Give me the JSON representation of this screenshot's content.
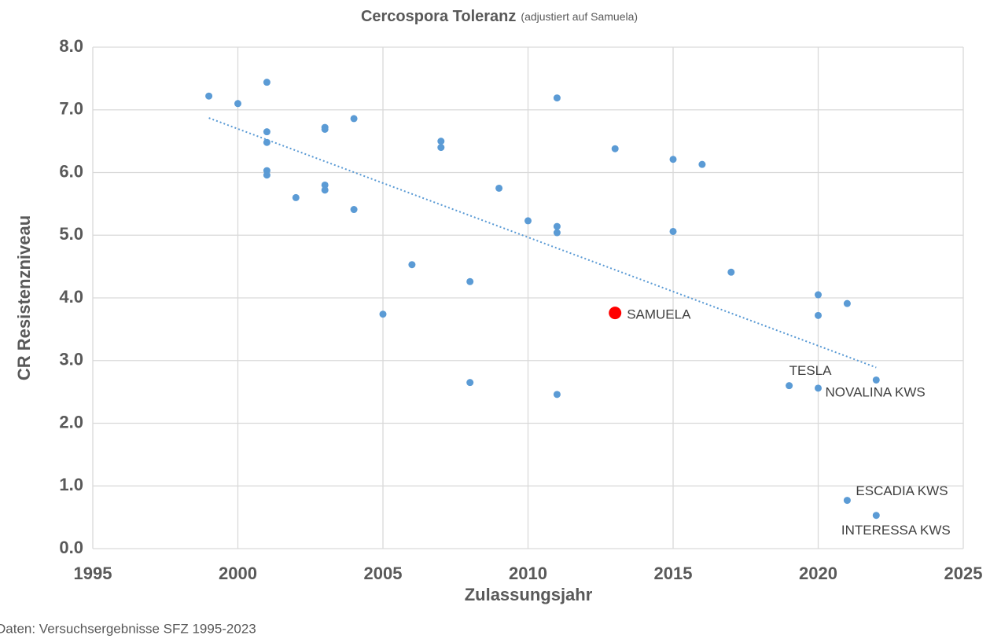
{
  "chart_data": {
    "type": "scatter",
    "title": "Cercospora Toleranz",
    "subtitle": "(adjustiert auf Samuela)",
    "x_label": "Zulassungsjahr",
    "y_label": "CR Resistenzniveau",
    "footnote": "Daten: Versuchsergebnisse SFZ 1995-2023",
    "xlim": [
      1995,
      2025
    ],
    "xticks": [
      1995,
      2000,
      2005,
      2010,
      2015,
      2020,
      2025
    ],
    "ylim": [
      0,
      8
    ],
    "yticks": [
      {
        "value": 0,
        "label": "0.0"
      },
      {
        "value": 1,
        "label": "1.0"
      },
      {
        "value": 2,
        "label": "2.0"
      },
      {
        "value": 3,
        "label": "3.0"
      },
      {
        "value": 4,
        "label": "4.0"
      },
      {
        "value": 5,
        "label": "5.0"
      },
      {
        "value": 6,
        "label": "6.0"
      },
      {
        "value": 7,
        "label": "7.0"
      },
      {
        "value": 8,
        "label": "8.0"
      }
    ],
    "grid": true,
    "series": [
      {
        "color": "#5b9bd5",
        "x": [
          1999,
          2000,
          2001,
          2001,
          2001,
          2001,
          2001,
          2002,
          2003,
          2003,
          2003,
          2003,
          2004,
          2004,
          2005,
          2006,
          2007,
          2007,
          2008,
          2008,
          2009,
          2010,
          2011,
          2011,
          2011,
          2011,
          2013,
          2015,
          2015,
          2016,
          2017,
          2019,
          2020,
          2020,
          2020,
          2021,
          2021,
          2022,
          2022
        ],
        "values": [
          7.22,
          7.1,
          7.44,
          6.65,
          6.48,
          6.03,
          5.96,
          5.6,
          6.72,
          6.69,
          5.8,
          5.72,
          6.86,
          5.41,
          3.74,
          4.53,
          6.5,
          6.4,
          4.26,
          2.65,
          5.75,
          5.23,
          7.19,
          5.14,
          5.04,
          2.46,
          6.38,
          6.21,
          5.06,
          6.13,
          4.41,
          2.6,
          4.05,
          3.72,
          2.56,
          3.91,
          0.77,
          2.69,
          0.53
        ],
        "labels": [
          null,
          null,
          null,
          null,
          null,
          null,
          null,
          null,
          null,
          null,
          null,
          null,
          null,
          null,
          null,
          null,
          null,
          null,
          null,
          null,
          null,
          null,
          null,
          null,
          null,
          null,
          null,
          null,
          null,
          null,
          null,
          "TESLA",
          null,
          null,
          "NOVALINA KWS",
          null,
          "ESCADIA KWS",
          null,
          "INTERESSA KWS"
        ]
      },
      {
        "color": "#ff0000",
        "x": [
          2013
        ],
        "values": [
          3.76
        ],
        "labels": [
          "SAMUELA"
        ]
      }
    ],
    "trendline": {
      "color": "#5b9bd5",
      "x": [
        1999,
        2022
      ],
      "values": [
        6.87,
        2.89
      ]
    }
  }
}
